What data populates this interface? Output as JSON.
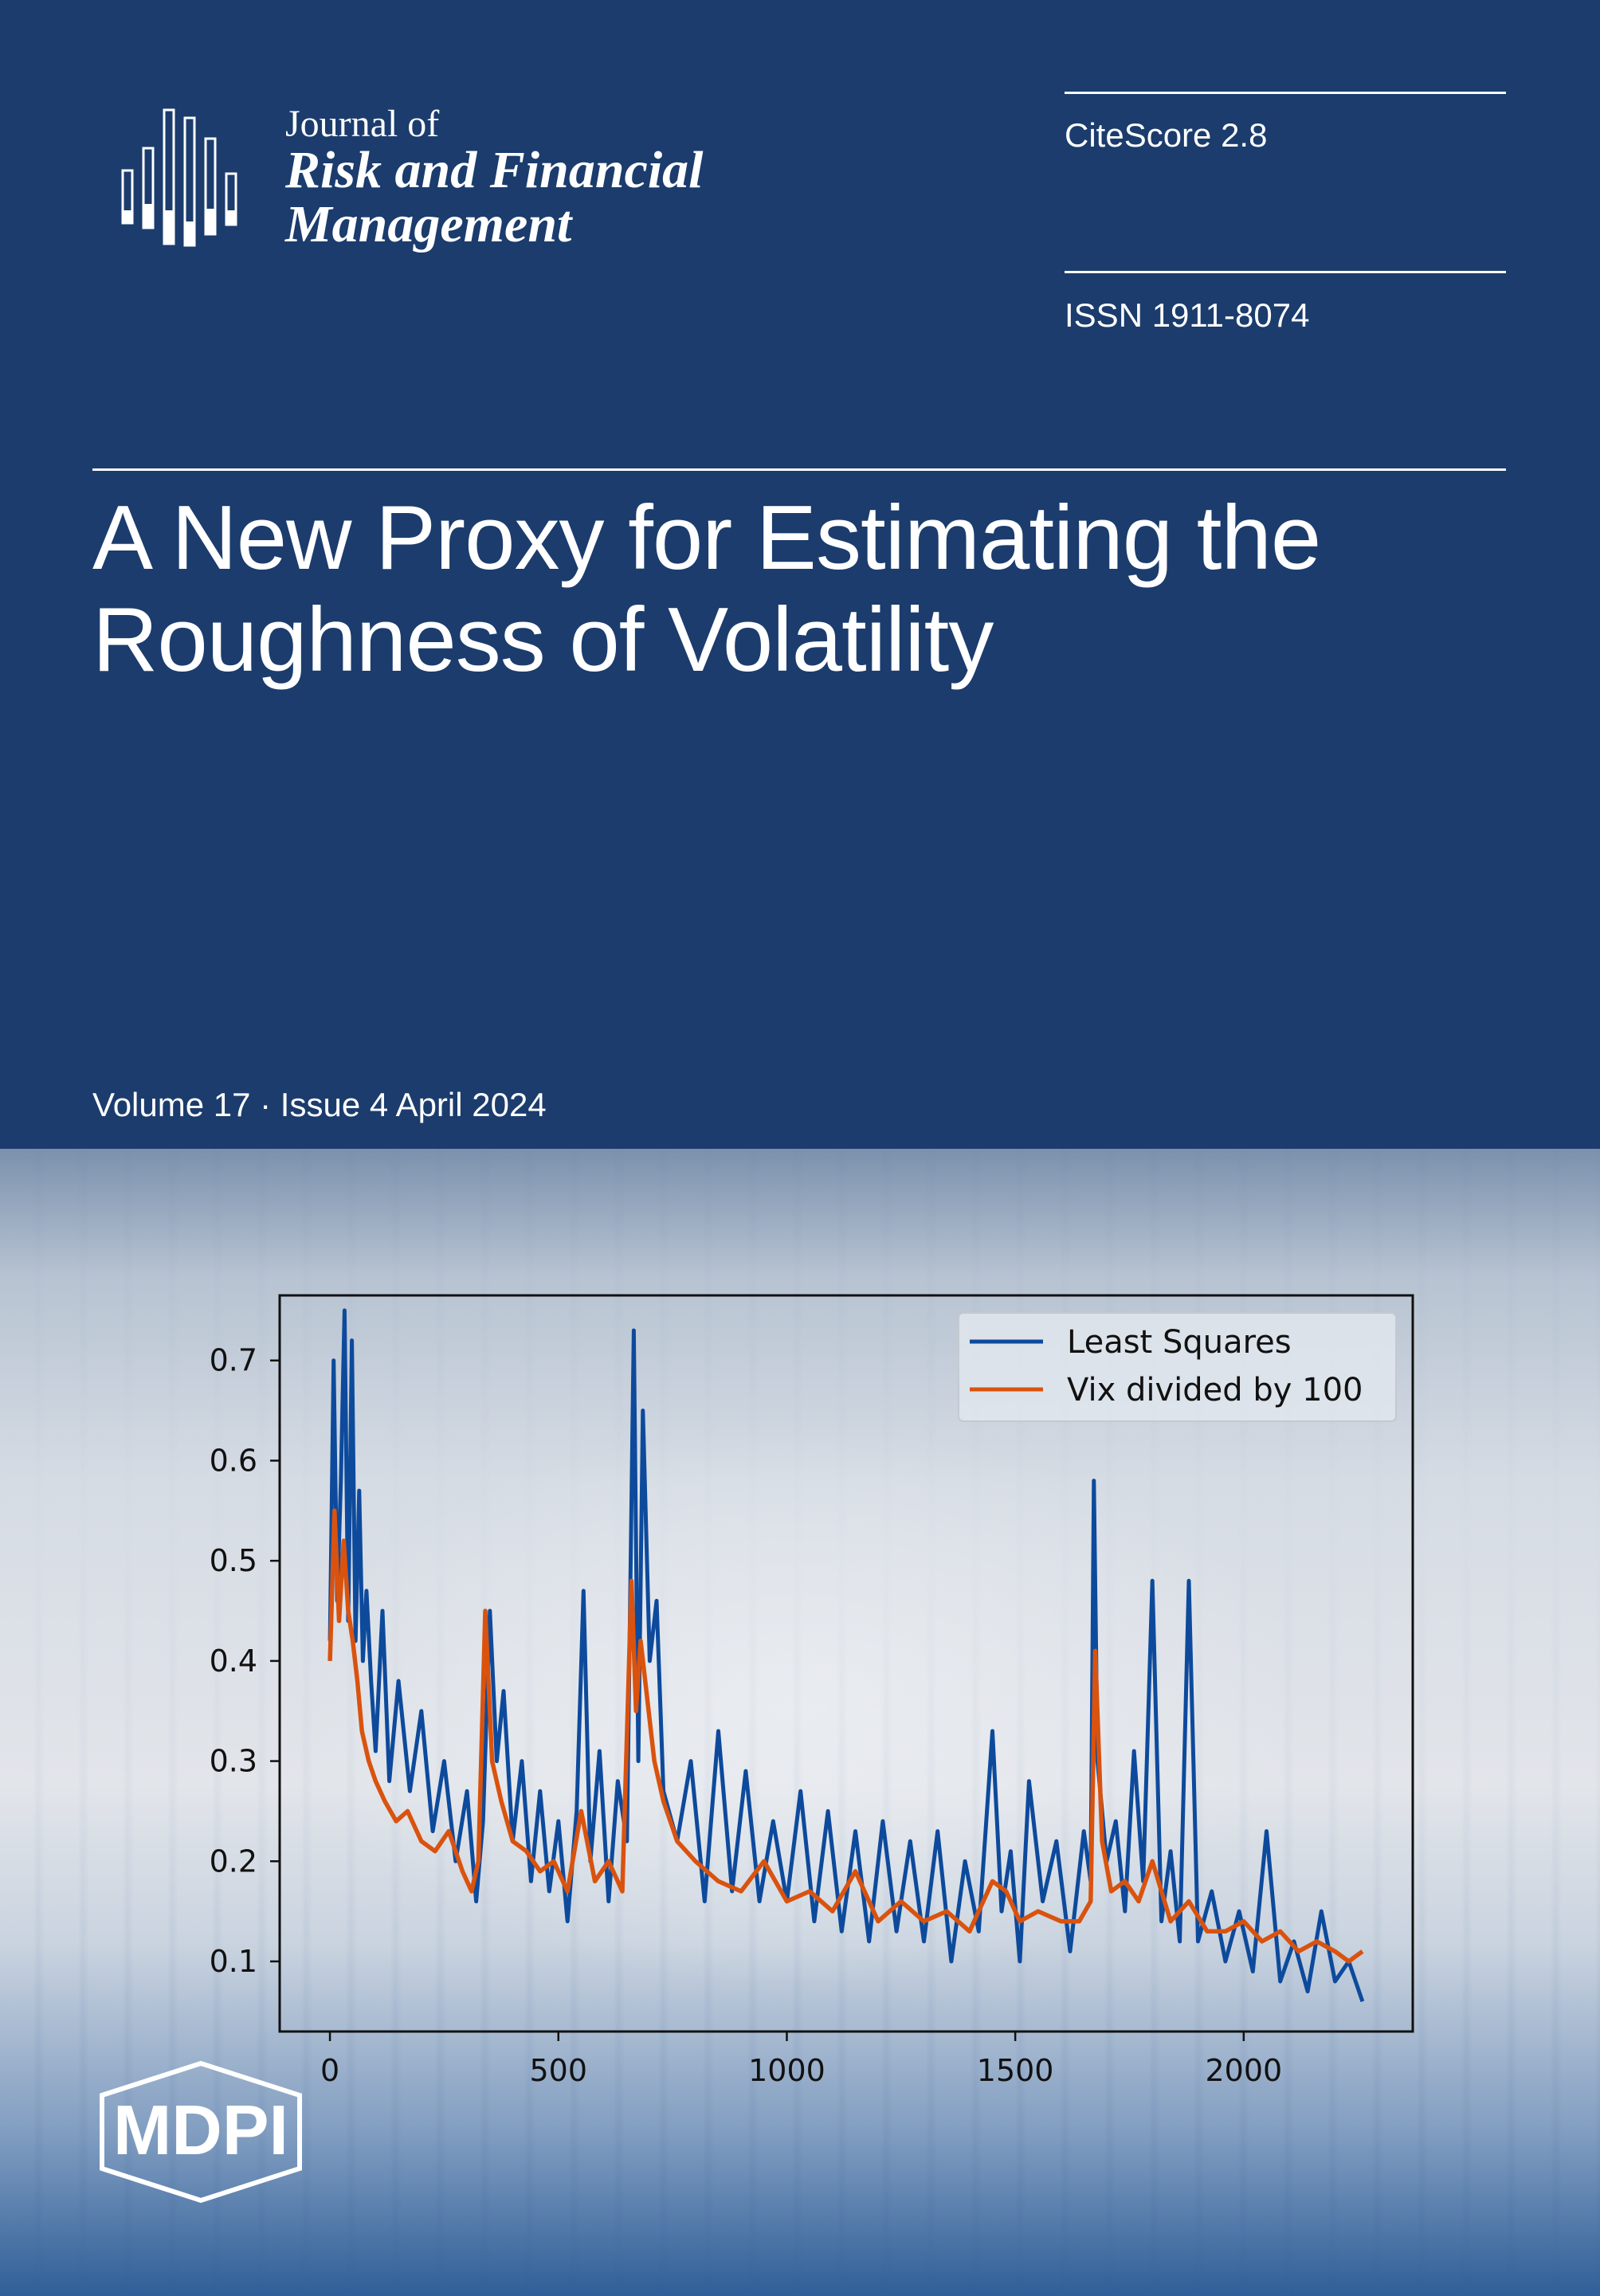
{
  "journal": {
    "line1": "Journal of",
    "line2": "Risk and Financial",
    "line3": "Management"
  },
  "citescore": "CiteScore 2.8",
  "issn": "ISSN 1911-8074",
  "article_title": {
    "line1": "A New Proxy for Estimating the",
    "line2": "Roughness of Volatility"
  },
  "issue_line": "Volume 17 · Issue 4 April 2024",
  "publisher": "MDPI",
  "colors": {
    "background": "#1b3c6d",
    "least_squares": "#0d4a9c",
    "vix": "#d9530f"
  },
  "chart_data": {
    "type": "line",
    "xlim": [
      -110,
      2370
    ],
    "ylim": [
      0.03,
      0.765
    ],
    "x_ticks": [
      0,
      500,
      1000,
      1500,
      2000
    ],
    "y_ticks": [
      0.1,
      0.2,
      0.3,
      0.4,
      0.5,
      0.6,
      0.7
    ],
    "x_tick_labels": [
      "0",
      "500",
      "1000",
      "1500",
      "2000"
    ],
    "y_tick_labels": [
      "0.1",
      "0.2",
      "0.3",
      "0.4",
      "0.5",
      "0.6",
      "0.7"
    ],
    "legend_position": "top-right",
    "grid": false,
    "series": [
      {
        "name": "Least Squares",
        "color": "#0d4a9c",
        "x": [
          0,
          8,
          16,
          24,
          32,
          40,
          48,
          56,
          64,
          72,
          80,
          90,
          100,
          115,
          130,
          150,
          175,
          200,
          225,
          250,
          275,
          300,
          320,
          335,
          350,
          365,
          380,
          400,
          420,
          440,
          460,
          480,
          500,
          520,
          540,
          555,
          570,
          590,
          610,
          630,
          650,
          665,
          675,
          685,
          700,
          715,
          730,
          760,
          790,
          820,
          850,
          880,
          910,
          940,
          970,
          1000,
          1030,
          1060,
          1090,
          1120,
          1150,
          1180,
          1210,
          1240,
          1270,
          1300,
          1330,
          1360,
          1390,
          1420,
          1450,
          1470,
          1490,
          1510,
          1530,
          1560,
          1590,
          1620,
          1650,
          1665,
          1672,
          1680,
          1700,
          1720,
          1740,
          1760,
          1780,
          1800,
          1820,
          1840,
          1860,
          1880,
          1900,
          1930,
          1960,
          1990,
          2020,
          2050,
          2080,
          2110,
          2140,
          2170,
          2200,
          2230,
          2260
        ],
        "values": [
          0.42,
          0.7,
          0.46,
          0.58,
          0.75,
          0.44,
          0.72,
          0.42,
          0.57,
          0.4,
          0.47,
          0.38,
          0.31,
          0.45,
          0.28,
          0.38,
          0.27,
          0.35,
          0.23,
          0.3,
          0.2,
          0.27,
          0.16,
          0.24,
          0.45,
          0.3,
          0.37,
          0.22,
          0.3,
          0.18,
          0.27,
          0.17,
          0.24,
          0.14,
          0.25,
          0.47,
          0.2,
          0.31,
          0.16,
          0.28,
          0.22,
          0.73,
          0.3,
          0.65,
          0.4,
          0.46,
          0.27,
          0.22,
          0.3,
          0.16,
          0.33,
          0.17,
          0.29,
          0.16,
          0.24,
          0.16,
          0.27,
          0.14,
          0.25,
          0.13,
          0.23,
          0.12,
          0.24,
          0.13,
          0.22,
          0.12,
          0.23,
          0.1,
          0.2,
          0.13,
          0.33,
          0.15,
          0.21,
          0.1,
          0.28,
          0.16,
          0.22,
          0.11,
          0.23,
          0.18,
          0.58,
          0.3,
          0.2,
          0.24,
          0.15,
          0.31,
          0.18,
          0.48,
          0.14,
          0.21,
          0.12,
          0.48,
          0.12,
          0.17,
          0.1,
          0.15,
          0.09,
          0.23,
          0.08,
          0.12,
          0.07,
          0.15,
          0.08,
          0.1,
          0.06
        ]
      },
      {
        "name": "Vix divided by 100",
        "color": "#d9530f",
        "x": [
          0,
          10,
          20,
          30,
          40,
          50,
          60,
          70,
          85,
          100,
          120,
          145,
          170,
          200,
          230,
          260,
          290,
          310,
          325,
          340,
          355,
          375,
          400,
          430,
          460,
          490,
          520,
          550,
          580,
          610,
          640,
          660,
          670,
          680,
          695,
          710,
          730,
          760,
          800,
          850,
          900,
          950,
          1000,
          1050,
          1100,
          1150,
          1200,
          1250,
          1300,
          1350,
          1400,
          1450,
          1480,
          1510,
          1550,
          1600,
          1640,
          1665,
          1675,
          1690,
          1710,
          1740,
          1770,
          1800,
          1840,
          1880,
          1920,
          1960,
          2000,
          2040,
          2080,
          2120,
          2160,
          2200,
          2230,
          2260
        ],
        "values": [
          0.4,
          0.55,
          0.44,
          0.52,
          0.45,
          0.42,
          0.38,
          0.33,
          0.3,
          0.28,
          0.26,
          0.24,
          0.25,
          0.22,
          0.21,
          0.23,
          0.19,
          0.17,
          0.2,
          0.45,
          0.3,
          0.26,
          0.22,
          0.21,
          0.19,
          0.2,
          0.17,
          0.25,
          0.18,
          0.2,
          0.17,
          0.48,
          0.35,
          0.42,
          0.36,
          0.3,
          0.26,
          0.22,
          0.2,
          0.18,
          0.17,
          0.2,
          0.16,
          0.17,
          0.15,
          0.19,
          0.14,
          0.16,
          0.14,
          0.15,
          0.13,
          0.18,
          0.17,
          0.14,
          0.15,
          0.14,
          0.14,
          0.16,
          0.41,
          0.22,
          0.17,
          0.18,
          0.16,
          0.2,
          0.14,
          0.16,
          0.13,
          0.13,
          0.14,
          0.12,
          0.13,
          0.11,
          0.12,
          0.11,
          0.1,
          0.11
        ]
      }
    ]
  }
}
